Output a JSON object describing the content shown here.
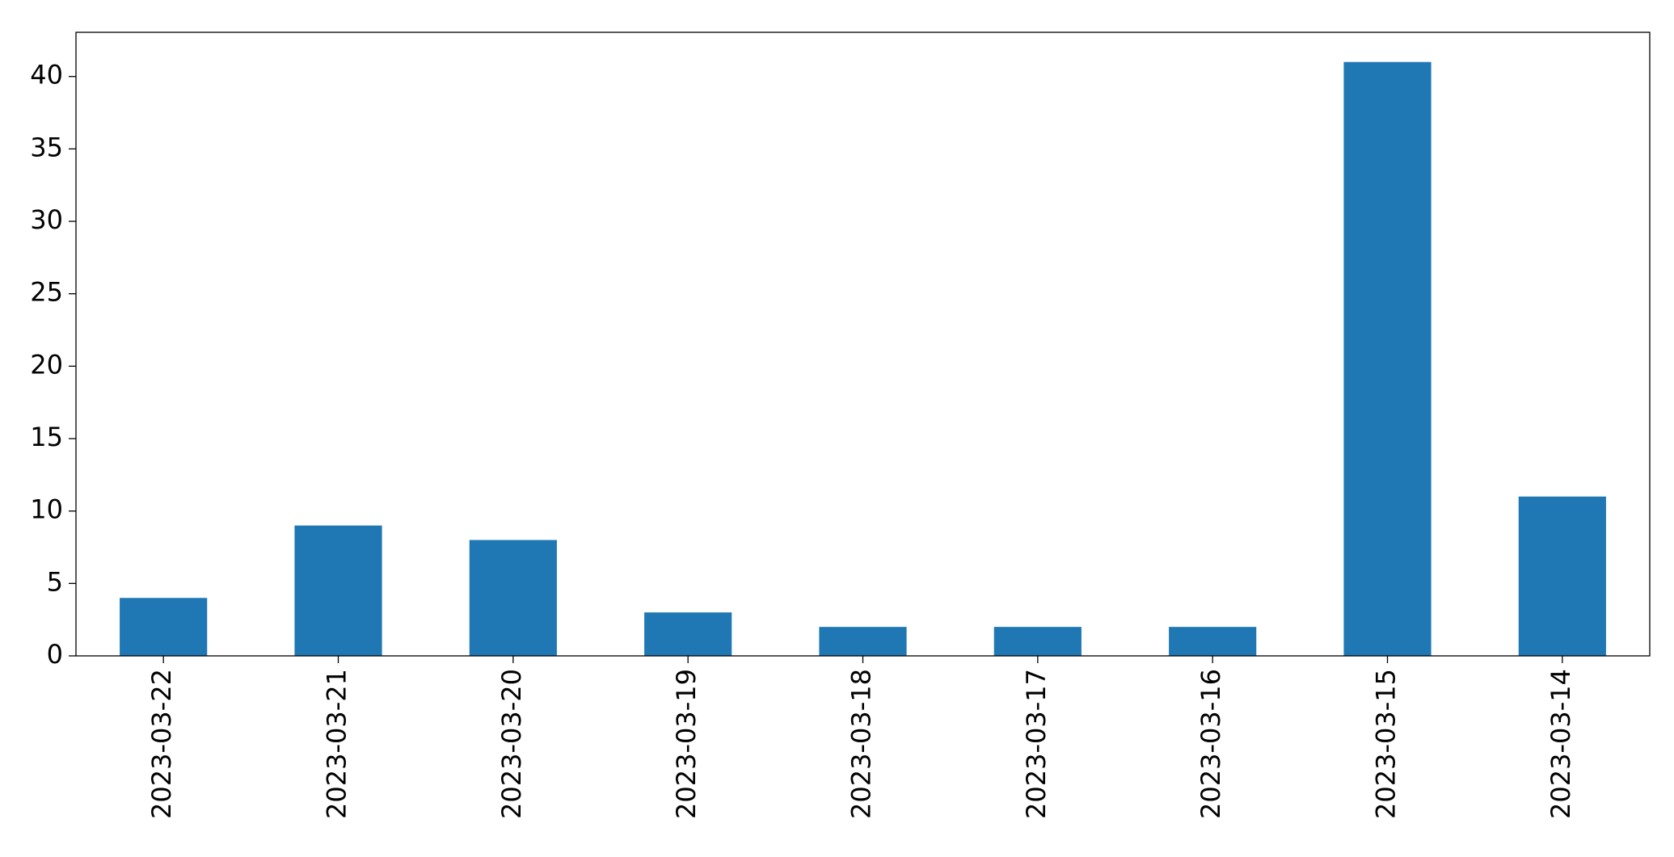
{
  "chart_data": {
    "type": "bar",
    "categories": [
      "2023-03-22",
      "2023-03-21",
      "2023-03-20",
      "2023-03-19",
      "2023-03-18",
      "2023-03-17",
      "2023-03-16",
      "2023-03-15",
      "2023-03-14"
    ],
    "values": [
      4,
      9,
      8,
      3,
      2,
      2,
      2,
      41,
      11
    ],
    "color": "#1f77b4",
    "ylim": [
      0,
      43.05
    ],
    "yticks": [
      0,
      5,
      10,
      15,
      20,
      25,
      30,
      35,
      40
    ],
    "grid": false
  }
}
